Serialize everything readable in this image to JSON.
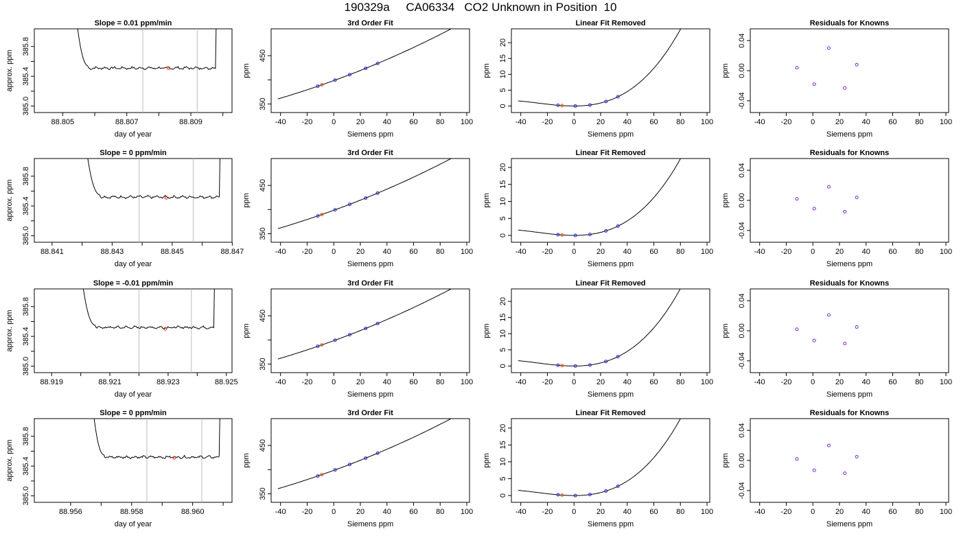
{
  "page": {
    "title": "190329a     CA06334   CO2 Unknown in Position  10"
  },
  "chart_data": [
    {
      "row": 0,
      "col": 0,
      "type": "line",
      "title": "Slope =  0.01  ppm/min",
      "xlabel": "day of year",
      "ylabel": "approx. ppm",
      "xlim": [
        88.8042,
        88.8102
      ],
      "ylim": [
        384.95,
        386.0
      ],
      "xticks": [
        "88.805",
        "88.807",
        "88.809"
      ],
      "xtick_values": [
        88.805,
        88.807,
        88.809
      ],
      "xminor": [
        88.806,
        88.808,
        88.81
      ],
      "yticks": [
        "385.0",
        "385.4",
        "385.8"
      ],
      "ytick_values": [
        385.0,
        385.4,
        385.8
      ],
      "yminor": [
        385.2,
        385.6
      ],
      "vlines": [
        88.8075,
        88.8092
      ],
      "x_start": 88.8054,
      "x_step_end": 88.8058,
      "x_end": 88.8098,
      "baseline": 385.51,
      "marker": {
        "x": 88.8083,
        "y": 385.51,
        "color": "#ff2200"
      }
    },
    {
      "row": 0,
      "col": 1,
      "type": "scatter_fit",
      "title": "3rd Order Fit",
      "xlabel": "Siemens ppm",
      "ylabel": "ppm",
      "xlim": [
        -45,
        100
      ],
      "ylim": [
        338,
        500
      ],
      "xticks": [
        "-40",
        "-20",
        "0",
        "20",
        "40",
        "60",
        "80",
        "100"
      ],
      "xtick_values": [
        -40,
        -20,
        0,
        20,
        40,
        60,
        80,
        100
      ],
      "yticks": [
        "350",
        "450"
      ],
      "ytick_values": [
        350,
        450
      ],
      "yminor": [
        400
      ],
      "curve": {
        "a": 398.5,
        "b": 1.0,
        "c": 0.0023,
        "d": 1.5e-06,
        "from": -42,
        "to": 96
      },
      "knowns_x": [
        -12,
        1,
        12,
        24,
        33
      ],
      "unknown_x": -9
    },
    {
      "row": 0,
      "col": 2,
      "type": "scatter_fit",
      "title": "Linear Fit Removed",
      "xlabel": "Siemens ppm",
      "ylabel": "ppm",
      "xlim": [
        -45,
        100
      ],
      "ylim": [
        -1.2,
        23.5
      ],
      "xticks": [
        "-40",
        "-20",
        "0",
        "20",
        "40",
        "60",
        "80",
        "100"
      ],
      "xtick_values": [
        -40,
        -20,
        0,
        20,
        40,
        60,
        80,
        100
      ],
      "yticks": [
        "0",
        "5",
        "10",
        "15",
        "20"
      ],
      "ytick_values": [
        0,
        5,
        10,
        15,
        20
      ],
      "curve": {
        "a": 0,
        "b": 0,
        "c": 0.0019,
        "d": 2.35e-05,
        "from": -42,
        "to": 96
      },
      "knowns_x": [
        -12,
        1,
        12,
        24,
        33
      ],
      "unknown_x": -9
    },
    {
      "row": 0,
      "col": 3,
      "type": "scatter",
      "title": "Residuals for Knowns",
      "xlabel": "Siemens ppm",
      "ylabel": "ppm",
      "xlim": [
        -45,
        100
      ],
      "ylim": [
        -0.052,
        0.052
      ],
      "xticks": [
        "-40",
        "-20",
        "0",
        "20",
        "40",
        "60",
        "80",
        "100"
      ],
      "xtick_values": [
        -40,
        -20,
        0,
        20,
        40,
        60,
        80,
        100
      ],
      "yticks": [
        "-0.04",
        "0.00",
        "0.04"
      ],
      "ytick_values": [
        -0.04,
        0.0,
        0.04
      ],
      "points": [
        {
          "x": -12,
          "y": 0.004
        },
        {
          "x": 1,
          "y": -0.018
        },
        {
          "x": 12,
          "y": 0.03
        },
        {
          "x": 24,
          "y": -0.023
        },
        {
          "x": 33,
          "y": 0.008
        }
      ]
    },
    {
      "row": 1,
      "col": 0,
      "type": "line",
      "title": "Slope =  0  ppm/min",
      "xlabel": "day of year",
      "ylabel": "approx. ppm",
      "xlim": [
        88.8405,
        88.8469
      ],
      "ylim": [
        384.95,
        386.0
      ],
      "xticks": [
        "88.841",
        "88.843",
        "88.845",
        "88.847"
      ],
      "xtick_values": [
        88.841,
        88.843,
        88.845,
        88.847
      ],
      "xminor": [
        88.842,
        88.844,
        88.846
      ],
      "yticks": [
        "385.0",
        "385.4",
        "385.8"
      ],
      "ytick_values": [
        385.0,
        385.4,
        385.8
      ],
      "yminor": [
        385.2,
        385.6
      ],
      "vlines": [
        88.8439,
        88.8457
      ],
      "x_start": 88.8421,
      "x_step_end": 88.8426,
      "x_end": 88.8466,
      "baseline": 385.52,
      "marker": {
        "x": 88.8448,
        "y": 385.51,
        "color": "#ff2200"
      }
    },
    {
      "row": 1,
      "col": 1,
      "type": "scatter_fit",
      "title": "3rd Order Fit",
      "xlabel": "Siemens ppm",
      "ylabel": "ppm",
      "xlim": [
        -45,
        100
      ],
      "ylim": [
        338,
        500
      ],
      "xticks": [
        "-40",
        "-20",
        "0",
        "20",
        "40",
        "60",
        "80",
        "100"
      ],
      "xtick_values": [
        -40,
        -20,
        0,
        20,
        40,
        60,
        80,
        100
      ],
      "yticks": [
        "350",
        "450"
      ],
      "ytick_values": [
        350,
        450
      ],
      "yminor": [
        400
      ],
      "curve": {
        "a": 398.5,
        "b": 1.0,
        "c": 0.0023,
        "d": 1.5e-06,
        "from": -42,
        "to": 96
      },
      "knowns_x": [
        -12,
        1,
        12,
        24,
        33
      ],
      "unknown_x": -9
    },
    {
      "row": 1,
      "col": 2,
      "type": "scatter_fit",
      "title": "Linear Fit Removed",
      "xlabel": "Siemens ppm",
      "ylabel": "ppm",
      "xlim": [
        -45,
        100
      ],
      "ylim": [
        -1.2,
        21.8
      ],
      "xticks": [
        "-40",
        "-20",
        "0",
        "20",
        "40",
        "60",
        "80",
        "100"
      ],
      "xtick_values": [
        -40,
        -20,
        0,
        20,
        40,
        60,
        80,
        100
      ],
      "yticks": [
        "0",
        "5",
        "10",
        "15",
        "20"
      ],
      "ytick_values": [
        0,
        5,
        10,
        15,
        20
      ],
      "curve": {
        "a": 0,
        "b": 0,
        "c": 0.0018,
        "d": 2.15e-05,
        "from": -42,
        "to": 96
      },
      "knowns_x": [
        -12,
        1,
        12,
        24,
        33
      ],
      "unknown_x": -9
    },
    {
      "row": 1,
      "col": 3,
      "type": "scatter",
      "title": "Residuals for Knowns",
      "xlabel": "Siemens ppm",
      "ylabel": "ppm",
      "xlim": [
        -45,
        100
      ],
      "ylim": [
        -0.052,
        0.052
      ],
      "xticks": [
        "-40",
        "-20",
        "0",
        "20",
        "40",
        "60",
        "80",
        "100"
      ],
      "xtick_values": [
        -40,
        -20,
        0,
        20,
        40,
        60,
        80,
        100
      ],
      "yticks": [
        "-0.04",
        "0.00",
        "0.04"
      ],
      "ytick_values": [
        -0.04,
        0.0,
        0.04
      ],
      "points": [
        {
          "x": -12,
          "y": 0.002
        },
        {
          "x": 1,
          "y": -0.011
        },
        {
          "x": 12,
          "y": 0.018
        },
        {
          "x": 24,
          "y": -0.015
        },
        {
          "x": 33,
          "y": 0.004
        }
      ]
    },
    {
      "row": 2,
      "col": 0,
      "type": "line",
      "title": "Slope =  -0.01  ppm/min",
      "xlabel": "day of year",
      "ylabel": "approx. ppm",
      "xlim": [
        88.9185,
        88.9251
      ],
      "ylim": [
        384.95,
        386.0
      ],
      "xticks": [
        "88.919",
        "88.921",
        "88.923",
        "88.925"
      ],
      "xtick_values": [
        88.919,
        88.921,
        88.923,
        88.925
      ],
      "xminor": [
        88.92,
        88.922,
        88.924
      ],
      "yticks": [
        "385.0",
        "385.4",
        "385.8"
      ],
      "ytick_values": [
        385.0,
        385.4,
        385.8
      ],
      "yminor": [
        385.2,
        385.6
      ],
      "vlines": [
        88.922,
        88.9238
      ],
      "x_start": 88.92,
      "x_step_end": 88.9205,
      "x_end": 88.9246,
      "baseline": 385.52,
      "marker": {
        "x": 88.9229,
        "y": 385.5,
        "color": "#ff2200"
      }
    },
    {
      "row": 2,
      "col": 1,
      "type": "scatter_fit",
      "title": "3rd Order Fit",
      "xlabel": "Siemens ppm",
      "ylabel": "ppm",
      "xlim": [
        -45,
        100
      ],
      "ylim": [
        338,
        500
      ],
      "xticks": [
        "-40",
        "-20",
        "0",
        "20",
        "40",
        "60",
        "80",
        "100"
      ],
      "xtick_values": [
        -40,
        -20,
        0,
        20,
        40,
        60,
        80,
        100
      ],
      "yticks": [
        "350",
        "450"
      ],
      "ytick_values": [
        350,
        450
      ],
      "yminor": [
        400
      ],
      "curve": {
        "a": 398.5,
        "b": 1.0,
        "c": 0.0023,
        "d": 1.5e-06,
        "from": -42,
        "to": 96
      },
      "knowns_x": [
        -12,
        1,
        12,
        24,
        33
      ],
      "unknown_x": -9
    },
    {
      "row": 2,
      "col": 2,
      "type": "scatter_fit",
      "title": "Linear Fit Removed",
      "xlabel": "Siemens ppm",
      "ylabel": "ppm",
      "xlim": [
        -45,
        100
      ],
      "ylim": [
        -1.2,
        23.0
      ],
      "xticks": [
        "-40",
        "-20",
        "0",
        "20",
        "40",
        "60",
        "80",
        "100"
      ],
      "xtick_values": [
        -40,
        -20,
        0,
        20,
        40,
        60,
        80,
        100
      ],
      "yticks": [
        "0",
        "5",
        "10",
        "15",
        "20"
      ],
      "ytick_values": [
        0,
        5,
        10,
        15,
        20
      ],
      "curve": {
        "a": 0,
        "b": 0,
        "c": 0.0019,
        "d": 2.3e-05,
        "from": -42,
        "to": 96
      },
      "knowns_x": [
        -12,
        1,
        12,
        24,
        33
      ],
      "unknown_x": -9
    },
    {
      "row": 2,
      "col": 3,
      "type": "scatter",
      "title": "Residuals for Knowns",
      "xlabel": "Siemens ppm",
      "ylabel": "ppm",
      "xlim": [
        -45,
        100
      ],
      "ylim": [
        -0.052,
        0.052
      ],
      "xticks": [
        "-40",
        "-20",
        "0",
        "20",
        "40",
        "60",
        "80",
        "100"
      ],
      "xtick_values": [
        -40,
        -20,
        0,
        20,
        40,
        60,
        80,
        100
      ],
      "yticks": [
        "-0.04",
        "0.00",
        "0.04"
      ],
      "ytick_values": [
        -0.04,
        0.0,
        0.04
      ],
      "points": [
        {
          "x": -12,
          "y": 0.002
        },
        {
          "x": 1,
          "y": -0.013
        },
        {
          "x": 12,
          "y": 0.021
        },
        {
          "x": 24,
          "y": -0.017
        },
        {
          "x": 33,
          "y": 0.005
        }
      ]
    },
    {
      "row": 3,
      "col": 0,
      "type": "line",
      "title": "Slope =  0  ppm/min",
      "xlabel": "day of year",
      "ylabel": "approx. ppm",
      "xlim": [
        88.9549,
        88.9612
      ],
      "ylim": [
        384.95,
        386.0
      ],
      "xticks": [
        "88.956",
        "88.958",
        "88.960"
      ],
      "xtick_values": [
        88.956,
        88.958,
        88.96
      ],
      "xminor": [
        88.957,
        88.959,
        88.961
      ],
      "yticks": [
        "385.0",
        "385.4",
        "385.8"
      ],
      "ytick_values": [
        385.0,
        385.4,
        385.8
      ],
      "yminor": [
        385.2,
        385.6
      ],
      "vlines": [
        88.9585,
        88.9603
      ],
      "x_start": 88.9567,
      "x_step_end": 88.9571,
      "x_end": 88.9609,
      "baseline": 385.52,
      "marker": {
        "x": 88.9594,
        "y": 385.51,
        "color": "#ff2200"
      }
    },
    {
      "row": 3,
      "col": 1,
      "type": "scatter_fit",
      "title": "3rd Order Fit",
      "xlabel": "Siemens ppm",
      "ylabel": "ppm",
      "xlim": [
        -45,
        100
      ],
      "ylim": [
        338,
        500
      ],
      "xticks": [
        "-40",
        "-20",
        "0",
        "20",
        "40",
        "60",
        "80",
        "100"
      ],
      "xtick_values": [
        -40,
        -20,
        0,
        20,
        40,
        60,
        80,
        100
      ],
      "yticks": [
        "350",
        "450"
      ],
      "ytick_values": [
        350,
        450
      ],
      "yminor": [
        400
      ],
      "curve": {
        "a": 398.5,
        "b": 1.0,
        "c": 0.0023,
        "d": 1.5e-06,
        "from": -42,
        "to": 96
      },
      "knowns_x": [
        -12,
        1,
        12,
        24,
        33
      ],
      "unknown_x": -9
    },
    {
      "row": 3,
      "col": 2,
      "type": "scatter_fit",
      "title": "Linear Fit Removed",
      "xlabel": "Siemens ppm",
      "ylabel": "ppm",
      "xlim": [
        -45,
        100
      ],
      "ylim": [
        -1.2,
        22.0
      ],
      "xticks": [
        "-40",
        "-20",
        "0",
        "20",
        "40",
        "60",
        "80",
        "100"
      ],
      "xtick_values": [
        -40,
        -20,
        0,
        20,
        40,
        60,
        80,
        100
      ],
      "yticks": [
        "0",
        "5",
        "10",
        "15",
        "20"
      ],
      "ytick_values": [
        0,
        5,
        10,
        15,
        20
      ],
      "curve": {
        "a": 0,
        "b": 0,
        "c": 0.0018,
        "d": 2.2e-05,
        "from": -42,
        "to": 96
      },
      "knowns_x": [
        -12,
        1,
        12,
        24,
        33
      ],
      "unknown_x": -9
    },
    {
      "row": 3,
      "col": 3,
      "type": "scatter",
      "title": "Residuals for Knowns",
      "xlabel": "Siemens ppm",
      "ylabel": "ppm",
      "xlim": [
        -45,
        100
      ],
      "ylim": [
        -0.052,
        0.052
      ],
      "xticks": [
        "-40",
        "-20",
        "0",
        "20",
        "40",
        "60",
        "80",
        "100"
      ],
      "xtick_values": [
        -40,
        -20,
        0,
        20,
        40,
        60,
        80,
        100
      ],
      "yticks": [
        "-0.04",
        "0.00",
        "0.04"
      ],
      "ytick_values": [
        -0.04,
        0.0,
        0.04
      ],
      "points": [
        {
          "x": -12,
          "y": 0.002
        },
        {
          "x": 1,
          "y": -0.013
        },
        {
          "x": 12,
          "y": 0.02
        },
        {
          "x": 24,
          "y": -0.017
        },
        {
          "x": 33,
          "y": 0.005
        }
      ]
    }
  ]
}
